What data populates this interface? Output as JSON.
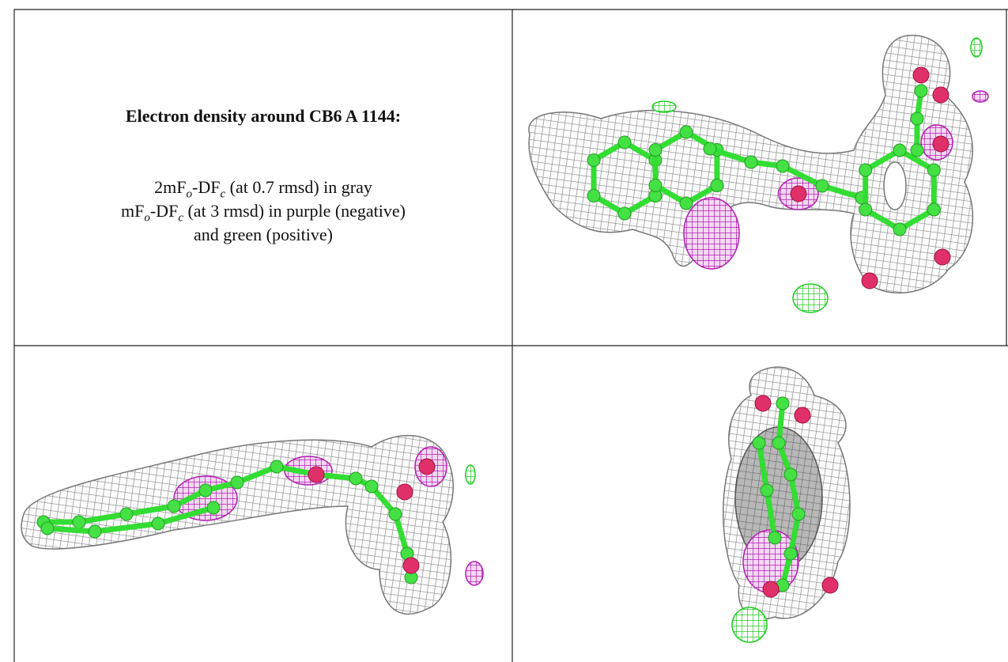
{
  "heading": "Electron density around CB6 A 1144:",
  "lines": [
    [
      "2mF",
      "o",
      "-DF",
      "c",
      " (at 0.7 rmsd) in gray"
    ],
    [
      "mF",
      "o",
      "-DF",
      "c",
      " (at 3 rmsd) in purple (negative)"
    ],
    [
      "and green (positive)"
    ]
  ]
}
